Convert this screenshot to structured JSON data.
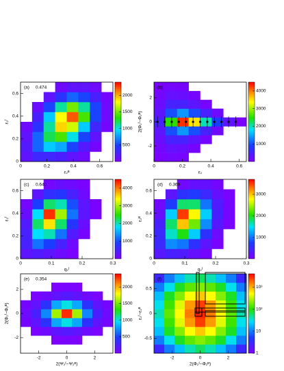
{
  "chart_data": [
    {
      "type": "heatmap",
      "label": "(a)",
      "value": "0.474",
      "xlabel": "ε₂ᴮ",
      "ylabel": "ε₂ᶠ",
      "xlim": [
        0,
        0.7
      ],
      "ylim": [
        0,
        0.7
      ],
      "xticks": [
        0,
        0.2,
        0.4,
        0.6
      ],
      "yticks": [
        0,
        0.2,
        0.4,
        0.6
      ],
      "zlim": [
        0,
        2400
      ],
      "zticks": [
        500,
        1000,
        1500,
        2000
      ],
      "zscale": "linear",
      "z": [
        [
          150,
          300,
          300,
          250,
          150,
          80,
          null,
          null
        ],
        [
          200,
          600,
          900,
          800,
          500,
          200,
          50,
          null
        ],
        [
          150,
          600,
          1200,
          1400,
          1000,
          500,
          150,
          null
        ],
        [
          80,
          400,
          1100,
          1900,
          1700,
          900,
          300,
          50
        ],
        [
          null,
          250,
          900,
          1800,
          2200,
          1400,
          500,
          80
        ],
        [
          null,
          100,
          500,
          1100,
          1500,
          1100,
          500,
          80
        ],
        [
          null,
          null,
          150,
          400,
          600,
          500,
          250,
          50
        ],
        [
          null,
          null,
          null,
          80,
          150,
          150,
          80,
          null
        ]
      ]
    },
    {
      "type": "heatmap",
      "label": "(b)",
      "xlabel": "ε₂",
      "ylabel": "2(Φ₂ᶠ−Φ₂ᴮ)",
      "xlim": [
        0,
        0.65
      ],
      "ylim": [
        -3.3,
        3.3
      ],
      "xticks": [
        0,
        0.2,
        0.4,
        0.6
      ],
      "yticks": [
        -2,
        0,
        2
      ],
      "zlim": [
        0,
        4500
      ],
      "zticks": [
        1000,
        2000,
        3000,
        4000
      ],
      "zscale": "linear",
      "z": [
        [
          50,
          100,
          80,
          null,
          null,
          null,
          null,
          null
        ],
        [
          100,
          250,
          200,
          80,
          null,
          null,
          null,
          null
        ],
        [
          200,
          500,
          500,
          300,
          80,
          null,
          null,
          null
        ],
        [
          300,
          1000,
          1400,
          1000,
          500,
          150,
          null,
          null
        ],
        [
          500,
          2500,
          4300,
          3500,
          2000,
          900,
          300,
          50
        ],
        [
          300,
          1000,
          1400,
          1000,
          500,
          150,
          null,
          null
        ],
        [
          200,
          500,
          500,
          300,
          80,
          null,
          null,
          null
        ],
        [
          100,
          250,
          200,
          80,
          null,
          null,
          null,
          null
        ],
        [
          50,
          100,
          80,
          null,
          null,
          null,
          null,
          null
        ]
      ],
      "profile": {
        "x": [
          0.025,
          0.075,
          0.125,
          0.175,
          0.225,
          0.275,
          0.325,
          0.375,
          0.425,
          0.475,
          0.525,
          0.575
        ],
        "values": [
          0,
          0,
          0,
          0,
          0,
          0,
          0,
          0,
          0,
          0,
          0,
          0
        ]
      }
    },
    {
      "type": "heatmap",
      "label": "(c)",
      "value": "0.640",
      "xlabel": "q₂ᶠ",
      "ylabel": "ε₂ᶠ",
      "xlim": [
        0,
        0.3
      ],
      "ylim": [
        0,
        0.7
      ],
      "xticks": [
        0,
        0.1,
        0.2,
        0.3
      ],
      "yticks": [
        0,
        0.2,
        0.4,
        0.6
      ],
      "zlim": [
        0,
        4500
      ],
      "zticks": [
        1000,
        2000,
        3000,
        4000
      ],
      "zscale": "linear",
      "z": [
        [
          300,
          400,
          300,
          150,
          50,
          null,
          null,
          null
        ],
        [
          500,
          1200,
          900,
          500,
          150,
          null,
          null,
          null
        ],
        [
          500,
          1800,
          2000,
          1200,
          400,
          80,
          null,
          null
        ],
        [
          400,
          2200,
          3500,
          2200,
          800,
          200,
          null,
          null
        ],
        [
          200,
          1800,
          4300,
          3000,
          1200,
          300,
          50,
          null
        ],
        [
          100,
          900,
          2200,
          2000,
          1000,
          300,
          50,
          null
        ],
        [
          null,
          300,
          700,
          800,
          500,
          150,
          null,
          null
        ],
        [
          null,
          null,
          100,
          200,
          150,
          50,
          null,
          null
        ]
      ]
    },
    {
      "type": "heatmap",
      "label": "(d)",
      "value": "0.369",
      "xlabel": "q₂ᶠ",
      "ylabel": "ε₂ᴮ",
      "xlim": [
        0,
        0.3
      ],
      "ylim": [
        0,
        0.7
      ],
      "xticks": [
        0,
        0.1,
        0.2,
        0.3
      ],
      "yticks": [
        0,
        0.2,
        0.4,
        0.6
      ],
      "zlim": [
        0,
        3700
      ],
      "zticks": [
        1000,
        2000,
        3000
      ],
      "zscale": "linear",
      "z": [
        [
          300,
          400,
          350,
          200,
          80,
          null,
          null,
          null
        ],
        [
          500,
          1100,
          1000,
          600,
          250,
          50,
          null,
          null
        ],
        [
          500,
          1600,
          2000,
          1400,
          600,
          150,
          null,
          null
        ],
        [
          400,
          1800,
          3000,
          2300,
          1100,
          300,
          50,
          null
        ],
        [
          200,
          1400,
          3500,
          2800,
          1400,
          400,
          80,
          null
        ],
        [
          100,
          700,
          1800,
          1800,
          1000,
          350,
          80,
          null
        ],
        [
          null,
          250,
          600,
          700,
          500,
          200,
          50,
          null
        ],
        [
          null,
          null,
          100,
          200,
          200,
          80,
          null,
          null
        ]
      ]
    },
    {
      "type": "heatmap",
      "label": "(e)",
      "value": "0.354",
      "xlabel": "2(Ψ₂ᶠ−Ψ₂ᴮ)",
      "ylabel": "2(Φ₂ᶠ−Φ₂ᴮ)",
      "xlim": [
        -3.3,
        3.3
      ],
      "ylim": [
        -3.3,
        3.3
      ],
      "xticks": [
        -2,
        0,
        2
      ],
      "yticks": [
        -2,
        0,
        2
      ],
      "zlim": [
        0,
        2400
      ],
      "zticks": [
        500,
        1000,
        1500,
        2000
      ],
      "zscale": "linear",
      "z": [
        [
          null,
          null,
          null,
          null,
          null,
          null,
          null,
          null,
          null
        ],
        [
          null,
          null,
          null,
          20,
          30,
          20,
          null,
          null,
          null
        ],
        [
          null,
          30,
          80,
          150,
          200,
          150,
          80,
          30,
          null
        ],
        [
          50,
          150,
          400,
          800,
          1000,
          800,
          400,
          150,
          50
        ],
        [
          80,
          250,
          700,
          1600,
          2300,
          1600,
          700,
          250,
          80
        ],
        [
          50,
          150,
          400,
          800,
          1000,
          800,
          400,
          150,
          50
        ],
        [
          null,
          30,
          80,
          150,
          200,
          150,
          80,
          30,
          null
        ],
        [
          null,
          null,
          null,
          20,
          30,
          20,
          null,
          null,
          null
        ],
        [
          null,
          null,
          null,
          null,
          null,
          null,
          null,
          null,
          null
        ]
      ]
    },
    {
      "type": "heatmap",
      "label": "(f)",
      "xlabel": "2(Φ₂ᶠ−Φ₂ᴮ)",
      "ylabel": "ε₂ᶠ−ε₂ᴮ",
      "xlim": [
        -3.3,
        3.3
      ],
      "ylim": [
        -0.8,
        0.8
      ],
      "xticks": [
        -2,
        0,
        2
      ],
      "yticks": [
        -0.5,
        0,
        0.5
      ],
      "zlim": [
        1,
        4000
      ],
      "zticks": [
        1,
        10,
        {
          "value": 100,
          "label": "10²"
        },
        {
          "value": 1000,
          "label": "10³"
        }
      ],
      "zscale": "log",
      "z": [
        [
          3,
          10,
          20,
          40,
          60,
          40,
          20,
          10,
          3
        ],
        [
          10,
          30,
          80,
          150,
          200,
          150,
          80,
          30,
          10
        ],
        [
          20,
          80,
          200,
          500,
          800,
          500,
          200,
          80,
          20
        ],
        [
          30,
          120,
          400,
          1200,
          2500,
          1200,
          400,
          120,
          30
        ],
        [
          40,
          150,
          500,
          1500,
          3000,
          1500,
          500,
          150,
          40
        ],
        [
          30,
          120,
          400,
          1200,
          2500,
          1200,
          400,
          120,
          30
        ],
        [
          20,
          80,
          200,
          500,
          800,
          500,
          200,
          80,
          20
        ],
        [
          10,
          30,
          80,
          150,
          200,
          150,
          80,
          30,
          10
        ],
        [
          3,
          10,
          20,
          40,
          60,
          40,
          20,
          10,
          3
        ]
      ]
    }
  ]
}
